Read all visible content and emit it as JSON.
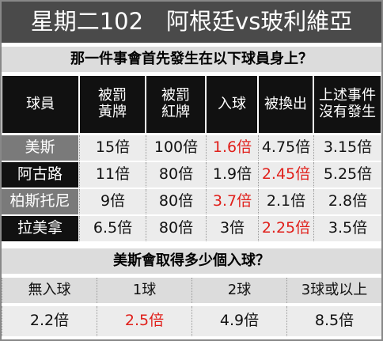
{
  "header": {
    "title": "星期二102　阿根廷vs玻利維亞"
  },
  "section1": {
    "question": "那一件事會首先發生在以下球員身上？",
    "columns": [
      "球員",
      "被罰\n黃牌",
      "被罰\n紅牌",
      "入球",
      "被換出",
      "上述事件\n沒有發生"
    ],
    "rows": [
      {
        "player": "美斯",
        "odds": [
          "15倍",
          "100倍",
          "1.6倍",
          "4.75倍",
          "3.15倍"
        ],
        "highlight": 2
      },
      {
        "player": "阿古路",
        "odds": [
          "11倍",
          "80倍",
          "1.9倍",
          "2.45倍",
          "5.25倍"
        ],
        "highlight": 3
      },
      {
        "player": "柏斯托尼",
        "odds": [
          "9倍",
          "80倍",
          "3.7倍",
          "2.1倍",
          "2.8倍"
        ],
        "highlight": 2
      },
      {
        "player": "拉美拿",
        "odds": [
          "6.5倍",
          "80倍",
          "3倍",
          "2.25倍",
          "3.5倍"
        ],
        "highlight": 3
      }
    ]
  },
  "section2": {
    "question": "美斯會取得多少個入球？",
    "columns": [
      "無入球",
      "1球",
      "2球",
      "3球或以上"
    ],
    "odds": [
      "2.2倍",
      "2.5倍",
      "4.9倍",
      "8.5倍"
    ],
    "highlight": 1
  },
  "highlight_color": "#e01f1a"
}
